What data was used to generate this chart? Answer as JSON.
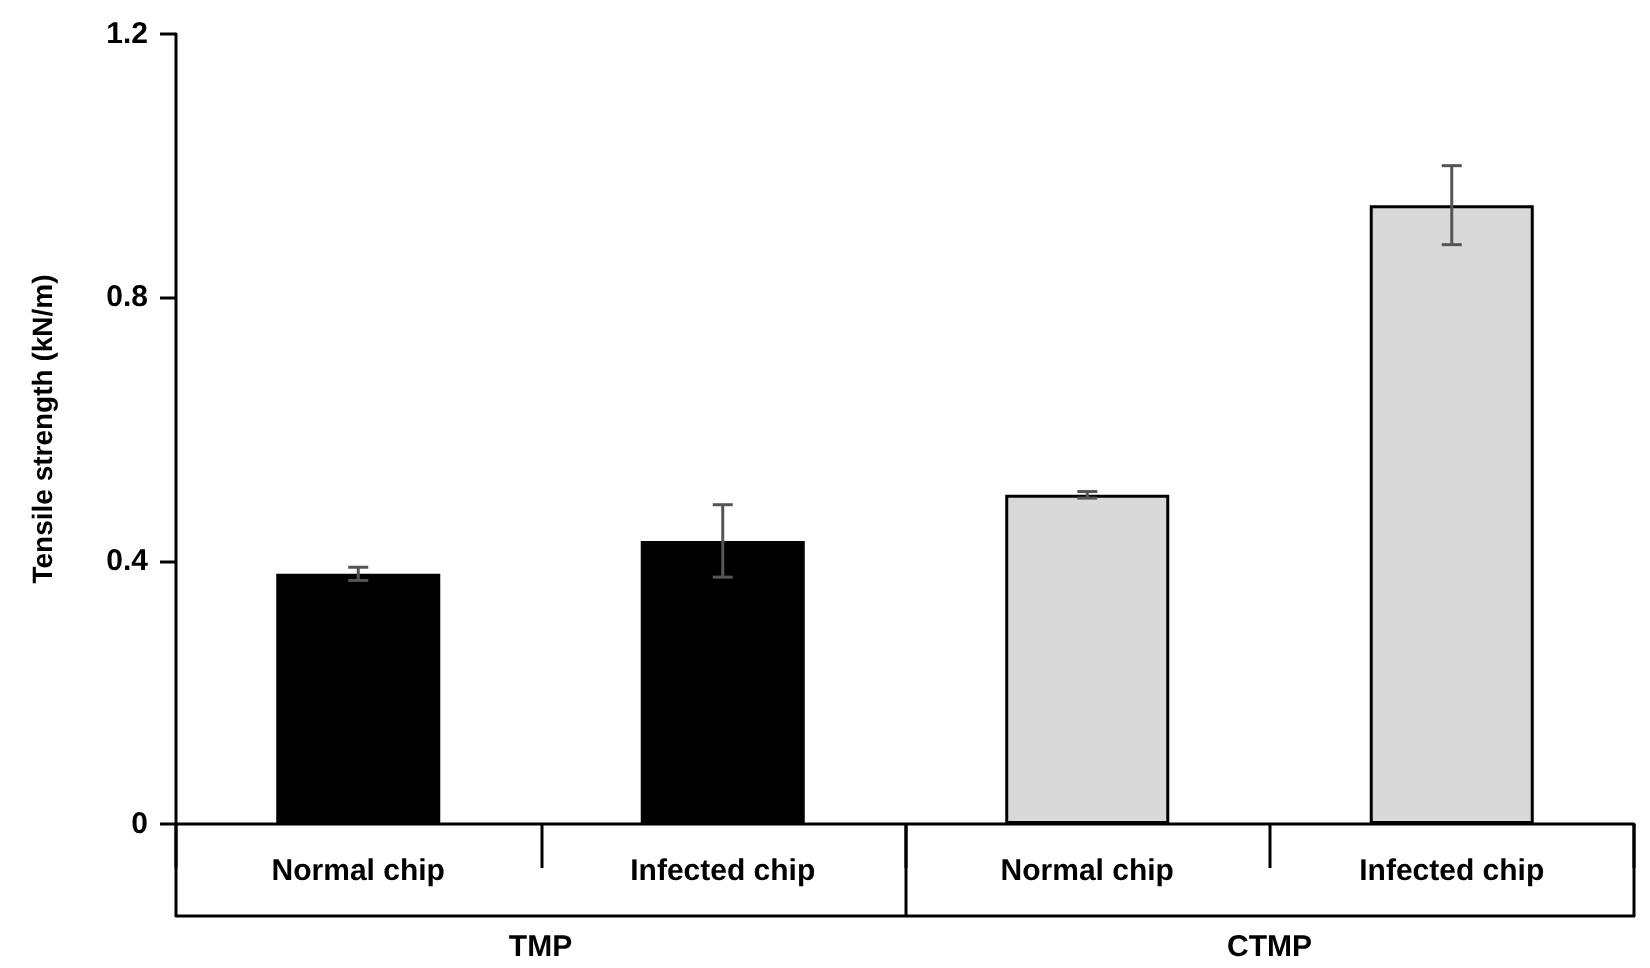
{
  "chart_data": {
    "type": "bar",
    "ylabel": "Tensile strength (kN/m)",
    "categories": [
      "Normal chip",
      "Infected chip",
      "Normal chip",
      "Infected chip"
    ],
    "values": [
      0.38,
      0.43,
      0.5,
      0.94
    ],
    "colors": [
      "#000000",
      "#000000",
      "#d9d9d9",
      "#d9d9d9"
    ],
    "errors": [
      0.01,
      0.055,
      0.005,
      0.06
    ],
    "ylim": [
      0,
      1.2
    ],
    "yticks": [
      0,
      0.4,
      0.8,
      1.2
    ],
    "grid": false,
    "annotations": [
      "TMP",
      "CTMP"
    ]
  }
}
